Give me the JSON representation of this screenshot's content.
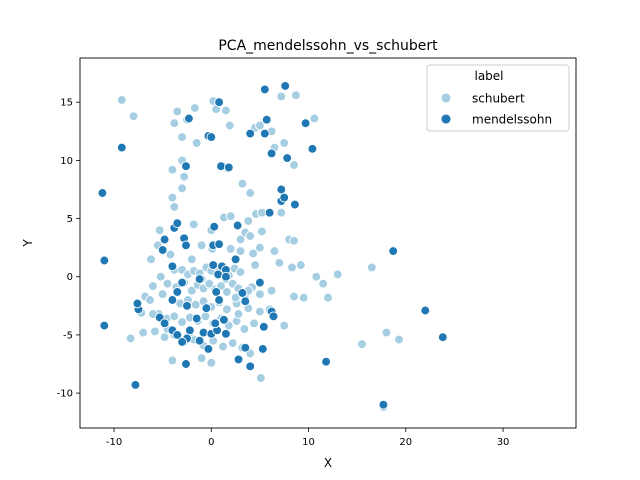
{
  "chart_data": {
    "type": "scatter",
    "title": "PCA_mendelssohn_vs_schubert",
    "xlabel": "X",
    "ylabel": "Y",
    "xlim": [
      -13.5,
      37.5
    ],
    "ylim": [
      -13,
      18.8
    ],
    "xticks": [
      -10,
      0,
      10,
      20,
      30
    ],
    "yticks": [
      -10,
      -5,
      0,
      5,
      10,
      15
    ],
    "grid": false,
    "legend": {
      "title": "label",
      "placement": "top-right"
    },
    "series": [
      {
        "name": "schubert",
        "color": "#a6cee3",
        "points": [
          [
            -9.2,
            15.2
          ],
          [
            -8.0,
            13.8
          ],
          [
            -3.8,
            13.2
          ],
          [
            -3.5,
            14.2
          ],
          [
            -2.5,
            13.5
          ],
          [
            -1.7,
            14.5
          ],
          [
            0.2,
            15.1
          ],
          [
            0.5,
            14.4
          ],
          [
            1.5,
            14.3
          ],
          [
            1.9,
            13.0
          ],
          [
            4.5,
            12.8
          ],
          [
            5.0,
            13.0
          ],
          [
            6.2,
            12.5
          ],
          [
            7.2,
            15.5
          ],
          [
            8.7,
            15.6
          ],
          [
            10.6,
            13.6
          ],
          [
            6.5,
            11.1
          ],
          [
            7.5,
            11.5
          ],
          [
            8.5,
            9.6
          ],
          [
            -3.0,
            12.0
          ],
          [
            -1.5,
            11.5
          ],
          [
            -3.0,
            10.0
          ],
          [
            -4.0,
            9.2
          ],
          [
            -2.8,
            8.6
          ],
          [
            -3.0,
            7.6
          ],
          [
            1.3,
            9.5
          ],
          [
            1.7,
            9.3
          ],
          [
            3.2,
            8.0
          ],
          [
            4.0,
            7.2
          ],
          [
            4.6,
            5.4
          ],
          [
            3.8,
            4.8
          ],
          [
            -4.0,
            6.8
          ],
          [
            -3.8,
            6.0
          ],
          [
            1.3,
            5.1
          ],
          [
            2.0,
            5.2
          ],
          [
            2.7,
            4.5
          ],
          [
            5.2,
            5.5
          ],
          [
            7.2,
            5.5
          ],
          [
            -5.3,
            4.0
          ],
          [
            -1.8,
            4.5
          ],
          [
            0.0,
            4.0
          ],
          [
            3.5,
            3.8
          ],
          [
            5.0,
            2.5
          ],
          [
            8.0,
            3.2
          ],
          [
            4.3,
            2.0
          ],
          [
            -5.5,
            2.7
          ],
          [
            -6.2,
            1.5
          ],
          [
            -1.0,
            2.7
          ],
          [
            0.1,
            2.4
          ],
          [
            -4.2,
            1.9
          ],
          [
            -3.8,
            0.6
          ],
          [
            -3.0,
            0.6
          ],
          [
            -2.4,
            0.2
          ],
          [
            -1.8,
            0.5
          ],
          [
            -1.2,
            0.3
          ],
          [
            -0.5,
            0.8
          ],
          [
            0.0,
            0.5
          ],
          [
            0.6,
            0.9
          ],
          [
            1.2,
            0.3
          ],
          [
            1.8,
            0.1
          ],
          [
            2.4,
            0.7
          ],
          [
            3.0,
            0.4
          ],
          [
            -5.2,
            0.0
          ],
          [
            -4.5,
            -0.6
          ],
          [
            -3.6,
            -0.9
          ],
          [
            -2.8,
            -0.5
          ],
          [
            -2.0,
            -1.2
          ],
          [
            -1.4,
            -0.7
          ],
          [
            -0.8,
            -1.0
          ],
          [
            -0.2,
            -0.6
          ],
          [
            0.4,
            -1.1
          ],
          [
            1.0,
            -0.8
          ],
          [
            1.6,
            -1.3
          ],
          [
            2.2,
            -0.6
          ],
          [
            2.8,
            -1.0
          ],
          [
            3.4,
            -1.5
          ],
          [
            4.2,
            -0.9
          ],
          [
            5.0,
            -1.5
          ],
          [
            -6.0,
            -0.8
          ],
          [
            -6.8,
            -1.7
          ],
          [
            -5.0,
            -1.5
          ],
          [
            -4.0,
            -1.9
          ],
          [
            -3.2,
            -2.3
          ],
          [
            -2.4,
            -2.0
          ],
          [
            -1.6,
            -2.4
          ],
          [
            -0.8,
            -2.1
          ],
          [
            0.0,
            -2.6
          ],
          [
            0.8,
            -2.2
          ],
          [
            1.6,
            -2.8
          ],
          [
            2.6,
            -2.3
          ],
          [
            3.8,
            -2.7
          ],
          [
            -5.4,
            -3.2
          ],
          [
            -4.6,
            -3.6
          ],
          [
            -3.8,
            -3.4
          ],
          [
            -3.0,
            -3.9
          ],
          [
            -2.2,
            -3.5
          ],
          [
            -1.4,
            -3.8
          ],
          [
            -0.6,
            -3.4
          ],
          [
            0.2,
            -4.0
          ],
          [
            1.0,
            -3.6
          ],
          [
            1.8,
            -4.2
          ],
          [
            2.6,
            -3.8
          ],
          [
            3.4,
            -4.5
          ],
          [
            4.4,
            -4.0
          ],
          [
            -5.8,
            -4.7
          ],
          [
            -4.8,
            -5.2
          ],
          [
            -3.8,
            -5.0
          ],
          [
            -2.8,
            -5.6
          ],
          [
            -1.8,
            -5.4
          ],
          [
            -0.8,
            -5.9
          ],
          [
            0.2,
            -5.5
          ],
          [
            1.2,
            -6.0
          ],
          [
            2.2,
            -5.7
          ],
          [
            3.2,
            -6.1
          ],
          [
            4.0,
            -6.6
          ],
          [
            -4.0,
            -7.2
          ],
          [
            -1.0,
            -7.0
          ],
          [
            0.0,
            -7.4
          ],
          [
            5.1,
            -8.7
          ],
          [
            -7.0,
            -4.8
          ],
          [
            -8.3,
            -5.3
          ],
          [
            6.2,
            -1.2
          ],
          [
            5.0,
            -3.0
          ],
          [
            6.0,
            -2.8
          ],
          [
            7.5,
            -4.2
          ],
          [
            8.5,
            -1.7
          ],
          [
            -6.0,
            -3.2
          ],
          [
            -7.2,
            -3.1
          ],
          [
            -6.3,
            -2.0
          ],
          [
            3.5,
            -1.5
          ],
          [
            3.0,
            3.2
          ],
          [
            2.0,
            2.4
          ],
          [
            4.0,
            3.5
          ],
          [
            5.2,
            3.9
          ],
          [
            6.5,
            2.2
          ],
          [
            7.0,
            1.2
          ],
          [
            8.3,
            0.8
          ],
          [
            8.5,
            3.1
          ],
          [
            9.2,
            1.0
          ],
          [
            10.8,
            0.0
          ],
          [
            11.5,
            -0.6
          ],
          [
            9.5,
            -1.8
          ],
          [
            13.0,
            0.2
          ],
          [
            12.0,
            -1.8
          ],
          [
            16.5,
            0.8
          ],
          [
            15.5,
            -5.8
          ],
          [
            18.0,
            -4.8
          ],
          [
            19.3,
            -5.4
          ],
          [
            17.7,
            -11.2
          ],
          [
            3.0,
            2.2
          ],
          [
            4.5,
            1.0
          ],
          [
            -2.0,
            1.5
          ],
          [
            -1.0,
            -0.2
          ],
          [
            1.5,
            -0.2
          ],
          [
            2.5,
            -1.8
          ],
          [
            -2.2,
            -4.8
          ],
          [
            -4.5,
            -4.5
          ],
          [
            -3.5,
            -1.4
          ],
          [
            2.8,
            -3.2
          ],
          [
            3.8,
            -1.2
          ]
        ]
      },
      {
        "name": "mendelssohn",
        "color": "#1f78b4",
        "points": [
          [
            -9.2,
            11.1
          ],
          [
            -11.2,
            7.2
          ],
          [
            -11.0,
            1.4
          ],
          [
            -11.0,
            -4.2
          ],
          [
            -7.5,
            -2.8
          ],
          [
            -7.6,
            -2.3
          ],
          [
            -7.8,
            -9.3
          ],
          [
            -5.0,
            2.3
          ],
          [
            -4.8,
            3.2
          ],
          [
            -3.8,
            4.2
          ],
          [
            -3.5,
            4.6
          ],
          [
            -2.8,
            3.3
          ],
          [
            -2.6,
            2.7
          ],
          [
            -2.6,
            9.5
          ],
          [
            -2.3,
            13.6
          ],
          [
            -0.3,
            12.1
          ],
          [
            0.0,
            12.0
          ],
          [
            0.8,
            15.0
          ],
          [
            1.0,
            9.5
          ],
          [
            1.8,
            9.4
          ],
          [
            2.7,
            4.4
          ],
          [
            4.0,
            12.3
          ],
          [
            5.5,
            16.1
          ],
          [
            5.7,
            13.5
          ],
          [
            5.5,
            12.3
          ],
          [
            6.2,
            10.6
          ],
          [
            7.2,
            7.5
          ],
          [
            7.6,
            16.4
          ],
          [
            7.8,
            10.2
          ],
          [
            6.0,
            5.5
          ],
          [
            7.2,
            6.5
          ],
          [
            7.5,
            6.8
          ],
          [
            8.6,
            6.2
          ],
          [
            9.7,
            13.2
          ],
          [
            10.4,
            11.0
          ],
          [
            0.3,
            4.3
          ],
          [
            0.2,
            2.7
          ],
          [
            0.8,
            2.8
          ],
          [
            -4.0,
            0.9
          ],
          [
            -3.0,
            -0.5
          ],
          [
            -3.5,
            -1.3
          ],
          [
            -4.0,
            -2.0
          ],
          [
            -2.5,
            -2.5
          ],
          [
            -1.2,
            -0.2
          ],
          [
            0.2,
            1.0
          ],
          [
            0.7,
            0.2
          ],
          [
            1.1,
            0.9
          ],
          [
            1.5,
            0.6
          ],
          [
            0.5,
            -1.3
          ],
          [
            0.8,
            -2.0
          ],
          [
            -0.5,
            -2.7
          ],
          [
            -1.5,
            -3.6
          ],
          [
            -2.2,
            -4.6
          ],
          [
            -0.8,
            -4.8
          ],
          [
            0.0,
            -4.9
          ],
          [
            0.6,
            -4.6
          ],
          [
            1.3,
            -3.7
          ],
          [
            -5.3,
            -3.5
          ],
          [
            -4.8,
            -4.0
          ],
          [
            -4.0,
            -4.6
          ],
          [
            -3.5,
            -5.0
          ],
          [
            -2.5,
            -5.3
          ],
          [
            -1.2,
            -5.5
          ],
          [
            -0.3,
            -6.2
          ],
          [
            0.4,
            -4.0
          ],
          [
            1.5,
            -4.9
          ],
          [
            -2.6,
            -7.5
          ],
          [
            2.8,
            -7.1
          ],
          [
            3.5,
            -6.1
          ],
          [
            4.0,
            -7.7
          ],
          [
            5.3,
            -6.2
          ],
          [
            5.4,
            -4.3
          ],
          [
            6.2,
            -3.0
          ],
          [
            6.4,
            -3.4
          ],
          [
            3.2,
            -1.4
          ],
          [
            3.5,
            -2.1
          ],
          [
            5.0,
            -0.5
          ],
          [
            -3.0,
            -5.6
          ],
          [
            18.7,
            2.2
          ],
          [
            22.0,
            -2.9
          ],
          [
            23.8,
            -5.2
          ],
          [
            17.7,
            -11.0
          ],
          [
            11.8,
            -7.3
          ],
          [
            1.5,
            0.0
          ],
          [
            2.5,
            1.5
          ]
        ]
      }
    ]
  }
}
